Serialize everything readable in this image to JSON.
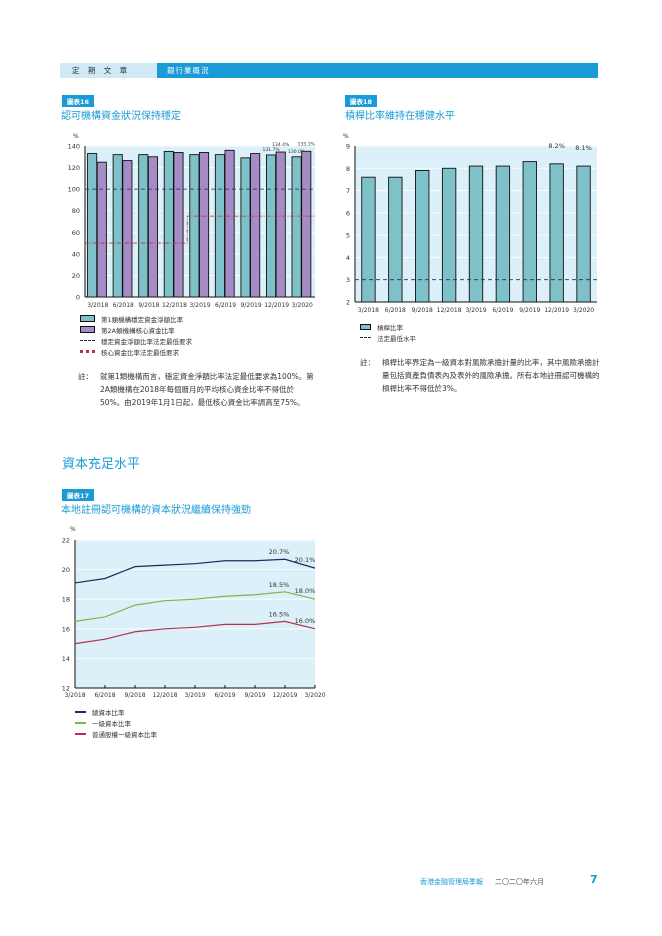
{
  "header": {
    "section": "定 期 文 章",
    "chapter": "銀行業概況"
  },
  "chart16": {
    "tag": "圖表16",
    "title": "認可機構資金狀況保持穩定",
    "legend": [
      "第1類機構穩定資金淨額比率",
      "第2A類機構核心資金比率",
      "穩定資金淨額比率法定最低要求",
      "核心資金比率法定最低要求"
    ],
    "note_label": "註：",
    "note": "就第1類機構而言，穩定資金淨額比率法定最低要求為100%。第2A類機構在2018年每個曆月的平均核心資金比率不得低於50%。由2019年1月1日起，最低核心資金比率調高至75%。"
  },
  "chart18": {
    "tag": "圖表18",
    "title": "槓桿比率維持在穩健水平",
    "legend": [
      "槓桿比率",
      "法定最低水平"
    ],
    "note_label": "註：",
    "note": "槓桿比率界定為一級資本對風險承擔計量的比率，其中風險承擔計量包括資產負債表內及表外的風險承擔。所有本地註冊認可機構的槓桿比率不得低於3%。"
  },
  "section_title": "資本充足水平",
  "chart17": {
    "tag": "圖表17",
    "title": "本地註冊認可機構的資本狀況繼續保持強勁",
    "legend": [
      "總資本比率",
      "一級資本比率",
      "普通股權一級資本比率"
    ]
  },
  "footer": {
    "publication": "香港金融管理局季報",
    "date": "二〇二〇年六月",
    "page": "7"
  },
  "chart_data": [
    {
      "type": "bar",
      "ylabel": "%",
      "ylim": [
        0,
        140
      ],
      "yticks": [
        0,
        20,
        40,
        60,
        80,
        100,
        120,
        140
      ],
      "categories": [
        "3/2018",
        "6/2018",
        "9/2018",
        "12/2018",
        "3/2019",
        "6/2019",
        "9/2019",
        "12/2019",
        "3/2020"
      ],
      "series": [
        {
          "name": "第1類機構穩定資金淨額比率",
          "color": "#7fc1c8",
          "values": [
            133,
            132,
            132,
            135,
            132,
            132,
            129,
            131.7,
            130.0
          ],
          "labels": {
            "7": "131.7%",
            "8": "130.0%"
          }
        },
        {
          "name": "第2A類機構核心資金比率",
          "color": "#a58cc4",
          "values": [
            125,
            126.5,
            130,
            134,
            134,
            136,
            133,
            134.4,
            135.1
          ],
          "labels": {
            "7": "134.4%",
            "8": "135.1%"
          }
        }
      ],
      "reference_lines": [
        {
          "name": "穩定資金淨額比率法定最低要求",
          "values": [
            100,
            100,
            100,
            100,
            100,
            100,
            100,
            100,
            100
          ]
        },
        {
          "name": "核心資金比率法定最低要求",
          "values": [
            50,
            50,
            50,
            50,
            75,
            75,
            75,
            75,
            75
          ]
        }
      ],
      "grid": true,
      "legend": "bottom"
    },
    {
      "type": "bar",
      "ylabel": "%",
      "ylim": [
        2,
        9
      ],
      "yticks": [
        2,
        3,
        4,
        5,
        6,
        7,
        8,
        9
      ],
      "categories": [
        "3/2018",
        "6/2018",
        "9/2018",
        "12/2018",
        "3/2019",
        "6/2019",
        "9/2019",
        "12/2019",
        "3/2020"
      ],
      "series": [
        {
          "name": "槓桿比率",
          "color": "#7fc1c8",
          "values": [
            7.6,
            7.6,
            7.9,
            8.0,
            8.1,
            8.1,
            8.3,
            8.2,
            8.1
          ],
          "labels": {
            "7": "8.2%",
            "8": "8.1%"
          }
        }
      ],
      "reference_lines": [
        {
          "name": "法定最低水平",
          "values": [
            3,
            3,
            3,
            3,
            3,
            3,
            3,
            3,
            3
          ]
        }
      ],
      "grid": true,
      "legend": "bottom"
    },
    {
      "type": "line",
      "ylabel": "%",
      "ylim": [
        12,
        22
      ],
      "yticks": [
        12,
        14,
        16,
        18,
        20,
        22
      ],
      "categories": [
        "3/2018",
        "6/2018",
        "9/2018",
        "12/2018",
        "3/2019",
        "6/2019",
        "9/2019",
        "12/2019",
        "3/2020"
      ],
      "series": [
        {
          "name": "總資本比率",
          "color": "#1f2a5c",
          "values": [
            19.1,
            19.4,
            20.2,
            20.3,
            20.4,
            20.6,
            20.6,
            20.7,
            20.1
          ],
          "labels": {
            "7": "20.7%",
            "8": "20.1%"
          }
        },
        {
          "name": "一級資本比率",
          "color": "#7ab648",
          "values": [
            16.5,
            16.8,
            17.6,
            17.9,
            18.0,
            18.2,
            18.3,
            18.5,
            18.0
          ],
          "labels": {
            "7": "18.5%",
            "8": "18.0%"
          }
        },
        {
          "name": "普通股權一級資本比率",
          "color": "#b0334f",
          "values": [
            15.0,
            15.3,
            15.8,
            16.0,
            16.1,
            16.3,
            16.3,
            16.5,
            16.0
          ],
          "labels": {
            "7": "16.5%",
            "8": "16.0%"
          }
        }
      ],
      "grid": true,
      "legend": "bottom"
    }
  ]
}
